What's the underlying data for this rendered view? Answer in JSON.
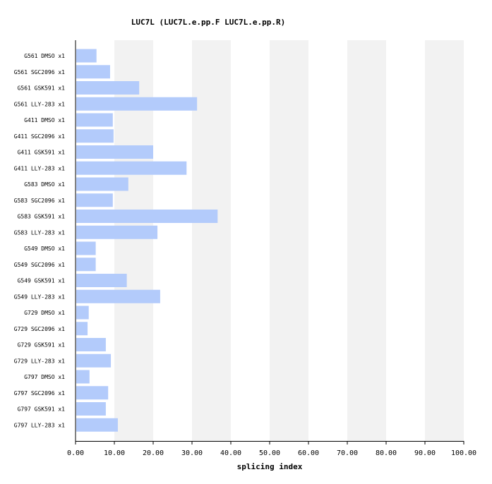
{
  "chart_data": {
    "type": "bar",
    "orientation": "horizontal",
    "title": "LUC7L (LUC7L.e.pp.F  LUC7L.e.pp.R)",
    "xlabel": "splicing index",
    "ylabel": "",
    "xlim": [
      0,
      100
    ],
    "xticks": [
      "0.00",
      "10.00",
      "20.00",
      "30.00",
      "40.00",
      "50.00",
      "60.00",
      "70.00",
      "80.00",
      "90.00",
      "100.00"
    ],
    "grid": "alternating vertical bands",
    "categories": [
      "G561 DMSO x1",
      "G561 SGC2096 x1",
      "G561 GSK591 x1",
      "G561 LLY-283 x1",
      "G411 DMSO x1",
      "G411 SGC2096 x1",
      "G411 GSK591 x1",
      "G411 LLY-283 x1",
      "G583 DMSO x1",
      "G583 SGC2096 x1",
      "G583 GSK591 x1",
      "G583 LLY-283 x1",
      "G549 DMSO x1",
      "G549 SGC2096 x1",
      "G549 GSK591 x1",
      "G549 LLY-283 x1",
      "G729 DMSO x1",
      "G729 SGC2096 x1",
      "G729 GSK591 x1",
      "G729 LLY-283 x1",
      "G797 DMSO x1",
      "G797 SGC2096 x1",
      "G797 GSK591 x1",
      "G797 LLY-283 x1"
    ],
    "values": [
      5.4,
      8.9,
      16.4,
      31.3,
      9.6,
      9.8,
      20.0,
      28.6,
      13.6,
      9.6,
      36.6,
      21.1,
      5.2,
      5.2,
      13.2,
      21.8,
      3.4,
      3.1,
      7.8,
      9.1,
      3.6,
      8.4,
      7.8,
      10.9
    ],
    "colors": {
      "bar": "#b3cbfb",
      "band": "#f2f2f2",
      "axis": "#000000"
    }
  }
}
